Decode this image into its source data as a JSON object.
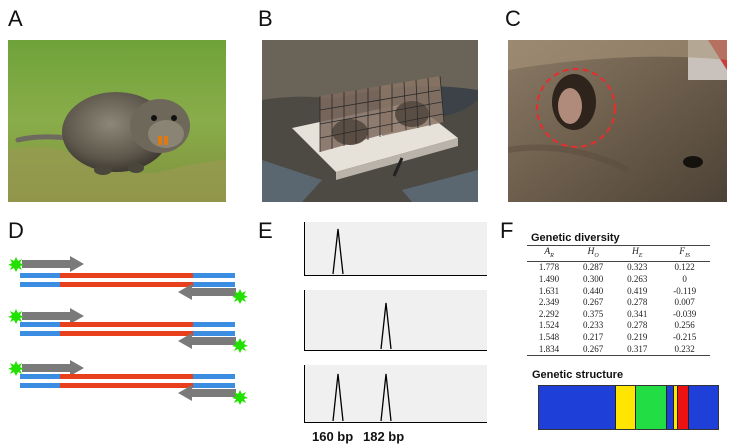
{
  "panels": {
    "a": "A",
    "b": "B",
    "c": "C",
    "d": "D",
    "e": "E",
    "f": "F"
  },
  "fragments": {
    "size_1": "160 bp",
    "size_2": "182 bp"
  },
  "genetic_diversity": {
    "title": "Genetic diversity",
    "headers": [
      "AR",
      "HO",
      "HE",
      "FIS"
    ],
    "rows": [
      [
        "1.778",
        "0.287",
        "0.323",
        "0.122"
      ],
      [
        "1.490",
        "0.300",
        "0.263",
        "0"
      ],
      [
        "1.631",
        "0.440",
        "0.419",
        "-0.119"
      ],
      [
        "2.349",
        "0.267",
        "0.278",
        "0.007"
      ],
      [
        "2.292",
        "0.375",
        "0.341",
        "-0.039"
      ],
      [
        "1.524",
        "0.233",
        "0.278",
        "0.256"
      ],
      [
        "1.548",
        "0.217",
        "0.219",
        "-0.215"
      ],
      [
        "1.834",
        "0.267",
        "0.317",
        "0.232"
      ]
    ]
  },
  "genetic_structure": {
    "title": "Genetic structure",
    "segments": [
      {
        "color": "#1e3fd8",
        "fraction": 0.44
      },
      {
        "color": "#ffe500",
        "fraction": 0.11
      },
      {
        "color": "#22dd44",
        "fraction": 0.17
      },
      {
        "color": "#1e3fd8",
        "fraction": 0.04
      },
      {
        "color": "#ffe500",
        "fraction": 0.015
      },
      {
        "color": "#ee1111",
        "fraction": 0.06
      },
      {
        "color": "#1e3fd8",
        "fraction": 0.165
      }
    ]
  },
  "colors": {
    "primer": "#7a7a7a",
    "flank": "#3a8de0",
    "insert": "#e8401c",
    "label": "#22e000"
  }
}
